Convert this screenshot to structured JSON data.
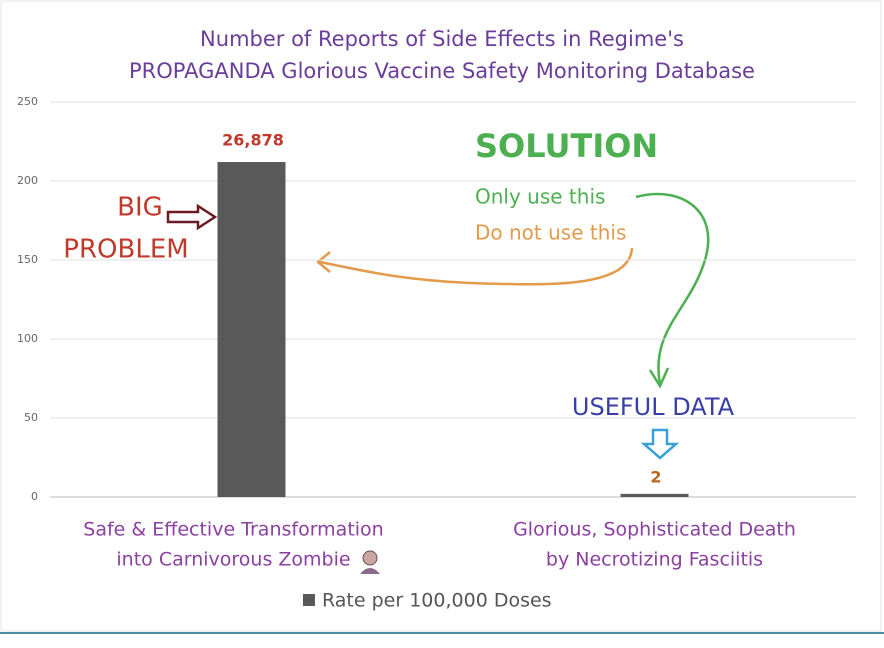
{
  "chart_data": {
    "type": "bar",
    "title": [
      "Number of Reports of Side Effects in Regime's",
      "PROPAGANDA Glorious Vaccine Safety Monitoring Database"
    ],
    "categories": [
      [
        "Safe & Effective Transformation",
        "into Carnivorous Zombie"
      ],
      [
        "Glorious, Sophisticated Death",
        "by Necrotizing Fasciitis"
      ]
    ],
    "series": [
      {
        "name": "Rate per 100,000 Doses",
        "color": "#595959",
        "values": [
          212,
          2
        ]
      }
    ],
    "ylim": [
      0,
      250
    ],
    "yticks": [
      0,
      50,
      100,
      150,
      200,
      250
    ],
    "grid": true,
    "legend": "bottom",
    "annotations": [
      "26,878",
      "2",
      "BIG",
      "PROBLEM",
      "SOLUTION",
      "Only use this",
      "Do not use this",
      "USEFUL DATA"
    ]
  }
}
